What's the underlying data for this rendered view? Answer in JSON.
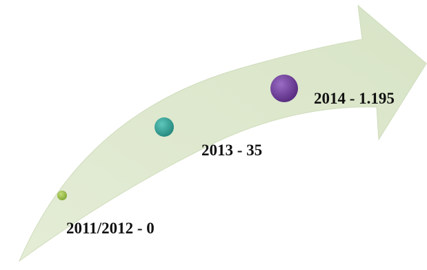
{
  "colors": {
    "arrow_fill": "#dde8cd",
    "arrow_stroke": "#cfdcbc",
    "background": "#ffffff",
    "text": "#111111"
  },
  "milestones": [
    {
      "label": "2011/2012 - 0",
      "color": "#8fb63e"
    },
    {
      "label": "2013 - 35",
      "color": "#2f9d92"
    },
    {
      "label": "2014 - 1.195",
      "color": "#6a3d97"
    }
  ]
}
